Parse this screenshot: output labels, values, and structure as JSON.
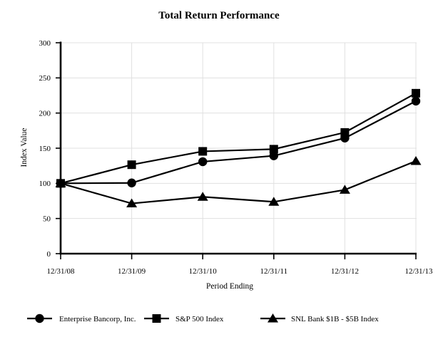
{
  "chart_data": {
    "type": "line",
    "title": "Total Return Performance",
    "xlabel": "Period Ending",
    "ylabel": "Index Value",
    "categories": [
      "12/31/08",
      "12/31/09",
      "12/31/10",
      "12/31/11",
      "12/31/12",
      "12/31/13"
    ],
    "ylim": [
      0,
      300
    ],
    "ytick_step": 50,
    "ytick_labels": [
      "0",
      "50",
      "100",
      "150",
      "200",
      "250",
      "300"
    ],
    "grid": true,
    "legend_position": "bottom",
    "series": [
      {
        "name": "Enterprise Bancorp, Inc.",
        "marker": "circle",
        "values": [
          100,
          100.6,
          130.8,
          139.2,
          164.4,
          217.0
        ]
      },
      {
        "name": "S&P 500 Index",
        "marker": "square",
        "values": [
          100,
          126.5,
          145.5,
          148.6,
          172.4,
          228.2
        ]
      },
      {
        "name": "SNL Bank $1B - $5B Index",
        "marker": "triangle",
        "values": [
          100,
          71.4,
          80.8,
          73.7,
          90.8,
          131.8
        ]
      }
    ],
    "colors": {
      "line": "#000000",
      "marker": "#000000",
      "grid": "#e0e0e0",
      "text": "#000000",
      "background": "#ffffff"
    }
  }
}
